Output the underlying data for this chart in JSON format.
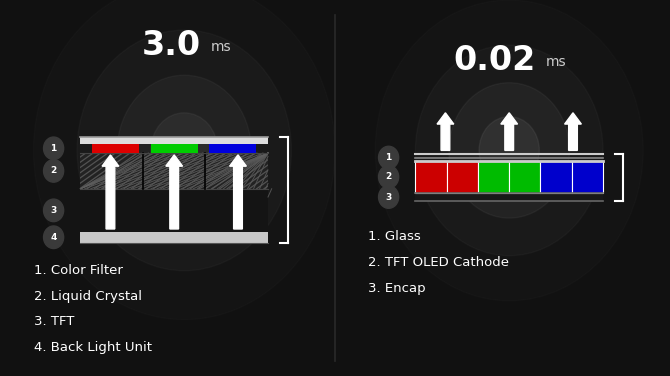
{
  "bg_color": "#111111",
  "divider_color": "#2a2a2a",
  "white": "#ffffff",
  "gray_circle": "#3a3a3a",
  "lcd": {
    "response_time_big": "3.0",
    "response_time_small": "ms",
    "layers": [
      "1. Color Filter",
      "2. Liquid Crystal",
      "3. TFT",
      "4. Back Light Unit"
    ],
    "num_circles": [
      "1",
      "2",
      "3",
      "4"
    ],
    "rgb_colors": [
      "#dd0000",
      "#00cc00",
      "#0000dd"
    ]
  },
  "oled": {
    "response_time_big": "0.02",
    "response_time_small": "ms",
    "layers": [
      "1. Glass",
      "2. TFT OLED Cathode",
      "3. Encap"
    ],
    "num_circles": [
      "1",
      "2",
      "3"
    ],
    "rgb_colors_blocks": [
      "#cc0000",
      "#cc0000",
      "#00bb00",
      "#00bb00",
      "#0000cc",
      "#0000cc"
    ]
  }
}
